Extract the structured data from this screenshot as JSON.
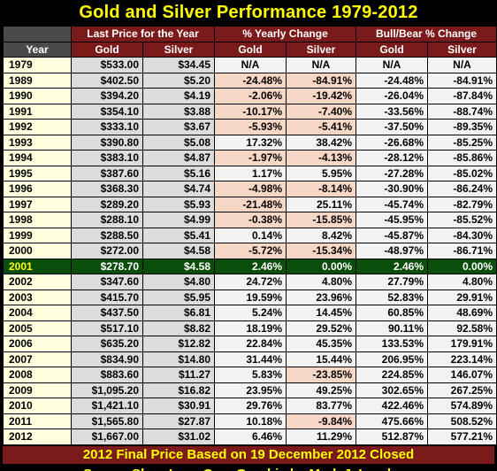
{
  "title": "Gold and Silver Performance 1979-2012",
  "colors": {
    "title": "#ffff00",
    "header_bg": "#7a1a1a",
    "highlight_row": "#0b4d0b",
    "negative_cell": "#f6d6c4",
    "year_bg": "#ffffdd"
  },
  "chart_data": {
    "type": "table",
    "group_headers": [
      "Last Price for the Year",
      "% Yearly Change",
      "Bull/Bear % Change"
    ],
    "columns": [
      "Year",
      "Gold",
      "Silver",
      "Gold",
      "Silver",
      "Gold",
      "Silver"
    ],
    "highlight_year": "2001",
    "rows": [
      [
        "1979",
        "$533.00",
        "$34.45",
        "N/A",
        "N/A",
        "N/A",
        "N/A"
      ],
      [
        "1989",
        "$402.50",
        "$5.20",
        "-24.48%",
        "-84.91%",
        "-24.48%",
        "-84.91%"
      ],
      [
        "1990",
        "$394.20",
        "$4.19",
        "-2.06%",
        "-19.42%",
        "-26.04%",
        "-87.84%"
      ],
      [
        "1991",
        "$354.10",
        "$3.88",
        "-10.17%",
        "-7.40%",
        "-33.56%",
        "-88.74%"
      ],
      [
        "1992",
        "$333.10",
        "$3.67",
        "-5.93%",
        "-5.41%",
        "-37.50%",
        "-89.35%"
      ],
      [
        "1993",
        "$390.80",
        "$5.08",
        "17.32%",
        "38.42%",
        "-26.68%",
        "-85.25%"
      ],
      [
        "1994",
        "$383.10",
        "$4.87",
        "-1.97%",
        "-4.13%",
        "-28.12%",
        "-85.86%"
      ],
      [
        "1995",
        "$387.60",
        "$5.16",
        "1.17%",
        "5.95%",
        "-27.28%",
        "-85.02%"
      ],
      [
        "1996",
        "$368.30",
        "$4.74",
        "-4.98%",
        "-8.14%",
        "-30.90%",
        "-86.24%"
      ],
      [
        "1997",
        "$289.20",
        "$5.93",
        "-21.48%",
        "25.11%",
        "-45.74%",
        "-82.79%"
      ],
      [
        "1998",
        "$288.10",
        "$4.99",
        "-0.38%",
        "-15.85%",
        "-45.95%",
        "-85.52%"
      ],
      [
        "1999",
        "$288.50",
        "$5.41",
        "0.14%",
        "8.42%",
        "-45.87%",
        "-84.30%"
      ],
      [
        "2000",
        "$272.00",
        "$4.58",
        "-5.72%",
        "-15.34%",
        "-48.97%",
        "-86.71%"
      ],
      [
        "2001",
        "$278.70",
        "$4.58",
        "2.46%",
        "0.00%",
        "2.46%",
        "0.00%"
      ],
      [
        "2002",
        "$347.60",
        "$4.80",
        "24.72%",
        "4.80%",
        "27.79%",
        "4.80%"
      ],
      [
        "2003",
        "$415.70",
        "$5.95",
        "19.59%",
        "23.96%",
        "52.83%",
        "29.91%"
      ],
      [
        "2004",
        "$437.50",
        "$6.81",
        "5.24%",
        "14.45%",
        "60.85%",
        "48.69%"
      ],
      [
        "2005",
        "$517.10",
        "$8.82",
        "18.19%",
        "29.52%",
        "90.11%",
        "92.58%"
      ],
      [
        "2006",
        "$635.20",
        "$12.82",
        "22.84%",
        "45.35%",
        "133.53%",
        "179.91%"
      ],
      [
        "2007",
        "$834.90",
        "$14.80",
        "31.44%",
        "15.44%",
        "206.95%",
        "223.14%"
      ],
      [
        "2008",
        "$883.60",
        "$11.27",
        "5.83%",
        "-23.85%",
        "224.85%",
        "146.07%"
      ],
      [
        "2009",
        "$1,095.20",
        "$16.82",
        "23.95%",
        "49.25%",
        "302.65%",
        "267.25%"
      ],
      [
        "2010",
        "$1,421.10",
        "$30.91",
        "29.76%",
        "83.77%",
        "422.46%",
        "574.89%"
      ],
      [
        "2011",
        "$1,565.80",
        "$27.87",
        "10.18%",
        "-9.84%",
        "475.66%",
        "508.52%"
      ],
      [
        "2012",
        "$1,667.00",
        "$31.02",
        "6.46%",
        "11.29%",
        "512.87%",
        "577.21%"
      ]
    ]
  },
  "footer_note": "2012 Final Price Based on 19 December 2012 Closed",
  "source": "Source ShareLynx.Com  Graphic by Mark J. Lundeen"
}
